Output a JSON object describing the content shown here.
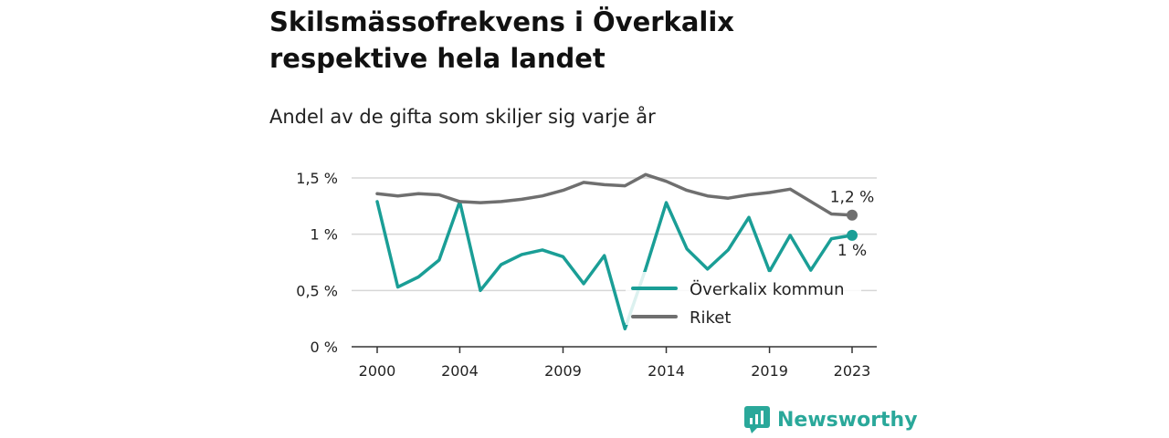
{
  "title": "Skilsmässofrekvens i Överkalix respektive hela landet",
  "subtitle": "Andel av de gifta som skiljer sig varje år",
  "brand": {
    "name": "Newsworthy",
    "icon": "newsworthy-logo-icon",
    "color": "#2aa89a"
  },
  "chart_data": {
    "type": "line",
    "x": [
      2000,
      2001,
      2002,
      2003,
      2004,
      2005,
      2006,
      2007,
      2008,
      2009,
      2010,
      2011,
      2012,
      2013,
      2014,
      2015,
      2016,
      2017,
      2018,
      2019,
      2020,
      2021,
      2022,
      2023
    ],
    "x_ticks": [
      2000,
      2004,
      2009,
      2014,
      2019,
      2023
    ],
    "x_tick_labels": [
      "2000",
      "2004",
      "2009",
      "2014",
      "2019",
      "2023"
    ],
    "y_ticks": [
      0,
      0.5,
      1,
      1.5
    ],
    "y_tick_labels": [
      "0 %",
      "0,5 %",
      "1 %",
      "1,5 %"
    ],
    "ylim": [
      0,
      1.5
    ],
    "grid": true,
    "legend_position": "bottom-right",
    "series": [
      {
        "name": "Överkalix kommun",
        "color": "#1a9e96",
        "values": [
          1.29,
          0.53,
          0.62,
          0.77,
          1.29,
          0.5,
          0.73,
          0.82,
          0.86,
          0.8,
          0.56,
          0.81,
          0.16,
          0.69,
          1.28,
          0.87,
          0.69,
          0.86,
          1.15,
          0.67,
          0.99,
          0.68,
          0.96,
          0.99
        ],
        "end_label": "1 %"
      },
      {
        "name": "Riket",
        "color": "#6f6f6f",
        "values": [
          1.36,
          1.34,
          1.36,
          1.35,
          1.29,
          1.28,
          1.29,
          1.31,
          1.34,
          1.39,
          1.46,
          1.44,
          1.43,
          1.53,
          1.47,
          1.39,
          1.34,
          1.32,
          1.35,
          1.37,
          1.4,
          1.29,
          1.18,
          1.17
        ],
        "end_label": "1,2 %"
      }
    ]
  }
}
